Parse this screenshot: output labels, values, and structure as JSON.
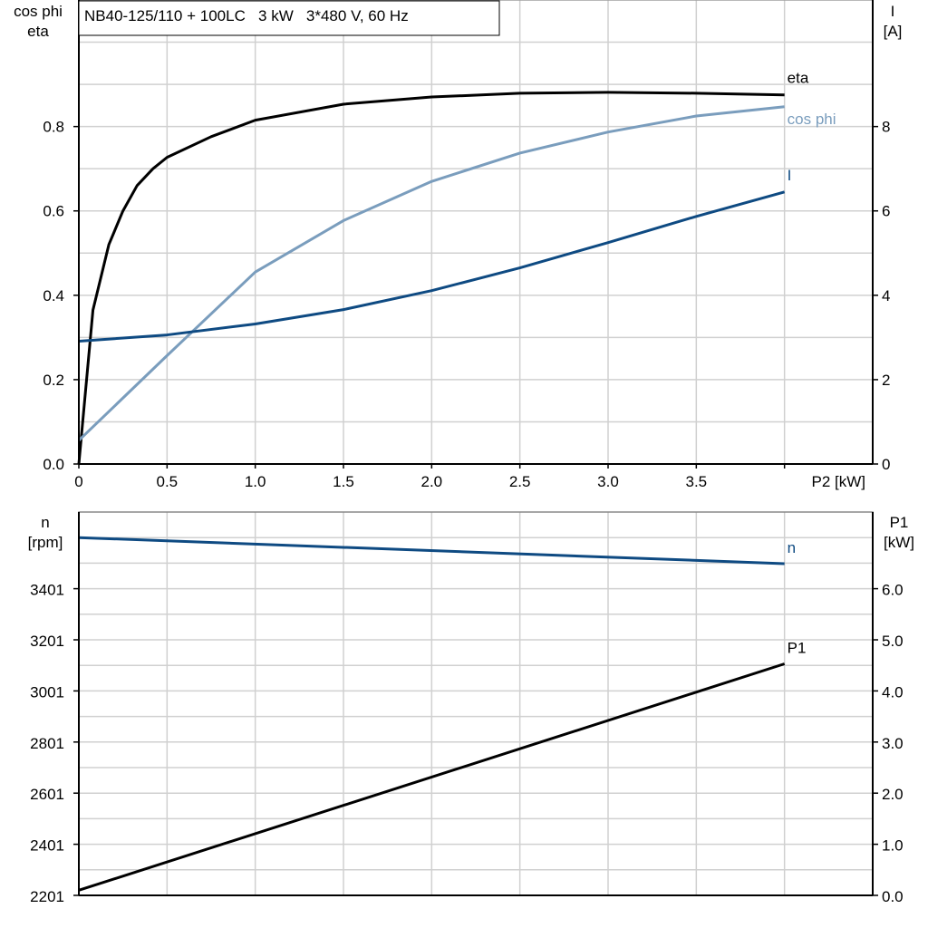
{
  "chart_data": [
    {
      "type": "line",
      "title": "NB40-125/110 + 100LC   3 kW   3*480 V, 60 Hz",
      "xlabel": "P2 [kW]",
      "ylabel_left": [
        "cos phi",
        "eta"
      ],
      "ylabel_right": [
        "I",
        "[A]"
      ],
      "xlim": [
        0,
        4.5
      ],
      "ylim_left": [
        0,
        1.1
      ],
      "ylim_right": [
        0,
        11
      ],
      "x_ticks": [
        "0",
        "0.5",
        "1.0",
        "1.5",
        "2.0",
        "2.5",
        "3.0",
        "3.5"
      ],
      "y_ticks_left": [
        "0.0",
        "0.2",
        "0.4",
        "0.6",
        "0.8"
      ],
      "y_ticks_right": [
        "0",
        "2",
        "4",
        "6",
        "8"
      ],
      "grid": true,
      "series": [
        {
          "name": "eta",
          "axis": "left",
          "color": "#000000",
          "x": [
            0,
            0.08,
            0.17,
            0.25,
            0.33,
            0.42,
            0.5,
            0.75,
            1.0,
            1.5,
            2.0,
            2.5,
            3.0,
            3.5,
            4.0
          ],
          "y": [
            0,
            0.365,
            0.52,
            0.6,
            0.66,
            0.7,
            0.727,
            0.776,
            0.815,
            0.853,
            0.87,
            0.879,
            0.881,
            0.879,
            0.875
          ]
        },
        {
          "name": "cos phi",
          "axis": "left",
          "color": "#7a9dbd",
          "x": [
            0,
            0.5,
            1.0,
            1.5,
            2.0,
            2.5,
            3.0,
            3.5,
            4.0
          ],
          "y": [
            0.056,
            0.257,
            0.455,
            0.577,
            0.67,
            0.737,
            0.787,
            0.825,
            0.847
          ]
        },
        {
          "name": "I",
          "axis": "right",
          "color": "#0e4a82",
          "x": [
            0,
            0.5,
            1.0,
            1.5,
            2.0,
            2.5,
            3.0,
            3.5,
            4.0
          ],
          "y": [
            2.91,
            3.06,
            3.32,
            3.66,
            4.11,
            4.65,
            5.25,
            5.87,
            6.45
          ]
        }
      ]
    },
    {
      "type": "line",
      "xlim": [
        0,
        4.5
      ],
      "ylabel_left": [
        "n",
        "[rpm]"
      ],
      "ylabel_right": [
        "P1",
        "[kW]"
      ],
      "ylim_left": [
        2201,
        3701
      ],
      "ylim_right": [
        0,
        7.5
      ],
      "y_ticks_left": [
        "2201",
        "2401",
        "2601",
        "2801",
        "3001",
        "3201",
        "3401"
      ],
      "y_ticks_right": [
        "0.0",
        "1.0",
        "2.0",
        "3.0",
        "4.0",
        "5.0",
        "6.0"
      ],
      "grid": true,
      "series": [
        {
          "name": "n",
          "axis": "left",
          "color": "#0e4a82",
          "x": [
            0,
            4.0
          ],
          "y": [
            3601,
            3499
          ]
        },
        {
          "name": "P1",
          "axis": "right",
          "color": "#000000",
          "x": [
            0,
            4.0
          ],
          "y": [
            0.1,
            4.53
          ]
        }
      ]
    }
  ]
}
